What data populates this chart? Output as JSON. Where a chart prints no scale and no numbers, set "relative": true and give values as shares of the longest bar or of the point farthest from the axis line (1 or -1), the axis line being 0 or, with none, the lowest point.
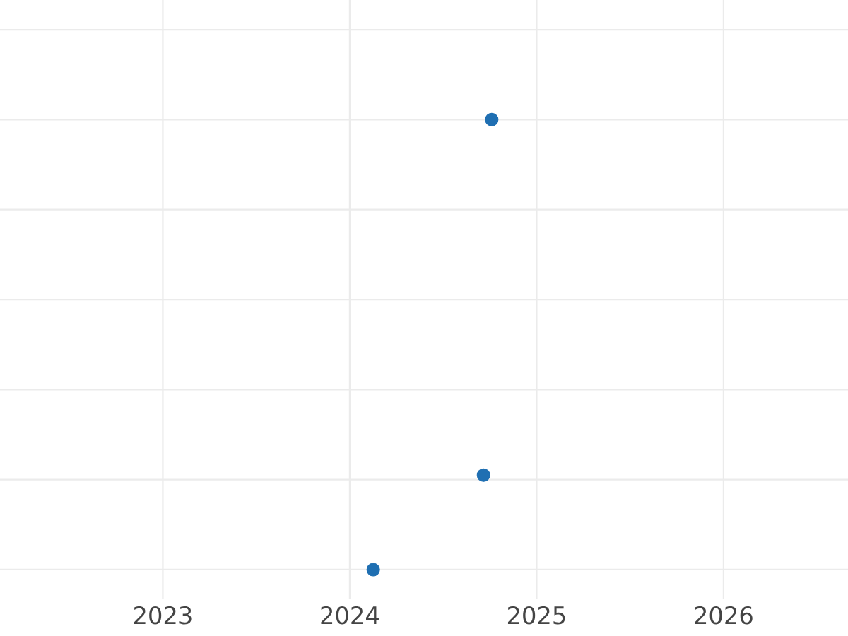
{
  "chart_data": {
    "type": "scatter",
    "relative": true,
    "x": [
      "2024-02-16",
      "2024-09-19",
      "2024-10-05"
    ],
    "series": [
      {
        "color": "#1f6fb2",
        "values": [
          0,
          0.21,
          1
        ]
      }
    ],
    "xlim": [
      "2022-02-17",
      "2026-09-01"
    ],
    "xticks": [
      "2023",
      "2024",
      "2025",
      "2026"
    ],
    "grid": true,
    "marker": "circle",
    "tick_labels": "x"
  }
}
